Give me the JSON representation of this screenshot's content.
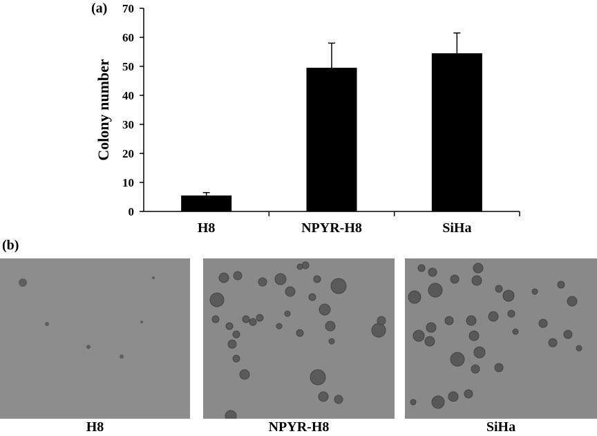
{
  "panels": {
    "a_label": "(a)",
    "b_label": "(b)"
  },
  "chart_data": {
    "type": "bar",
    "title": "",
    "xlabel": "",
    "ylabel": "Colony number",
    "categories": [
      "H8",
      "NPYR-H8",
      "SiHa"
    ],
    "values": [
      5.5,
      49.5,
      54.5
    ],
    "errors": [
      1.0,
      8.5,
      7.0
    ],
    "ylim": [
      0,
      70
    ],
    "yticks": [
      0,
      10,
      20,
      30,
      40,
      50,
      60,
      70
    ],
    "bar_color": "#000000",
    "grid": false,
    "legend": "none"
  },
  "micrographs": {
    "background_color": "#8a8a8a",
    "items": [
      {
        "caption": "H8"
      },
      {
        "caption": "NPYR-H8"
      },
      {
        "caption": "SiHa"
      }
    ]
  }
}
